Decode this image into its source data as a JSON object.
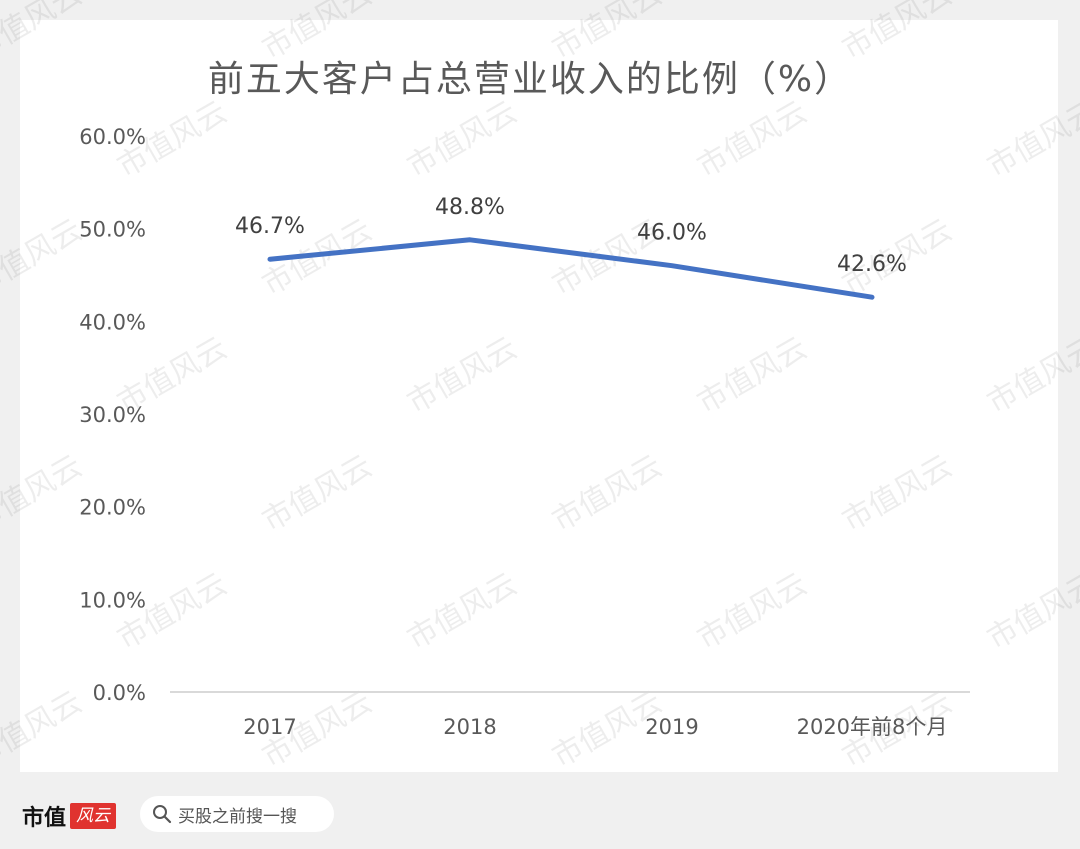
{
  "chart_data": {
    "type": "line",
    "title": "前五大客户占总营业收入的比例（%）",
    "categories": [
      "2017",
      "2018",
      "2019",
      "2020年前8个月"
    ],
    "series": [
      {
        "values": [
          46.7,
          48.8,
          46.0,
          42.6
        ],
        "labels": [
          "46.7%",
          "48.8%",
          "46.0%",
          "42.6%"
        ],
        "color": "#4472c4"
      }
    ],
    "ylim": [
      0,
      60
    ],
    "yticks": [
      "0.0%",
      "10.0%",
      "20.0%",
      "30.0%",
      "40.0%",
      "50.0%",
      "60.0%"
    ],
    "grid": false,
    "legend": "none"
  },
  "watermark": "市值风云",
  "footer": {
    "brand": "市值",
    "seal": "风云",
    "search_icon": "magnifier-icon",
    "search_text": "买股之前搜一搜"
  }
}
